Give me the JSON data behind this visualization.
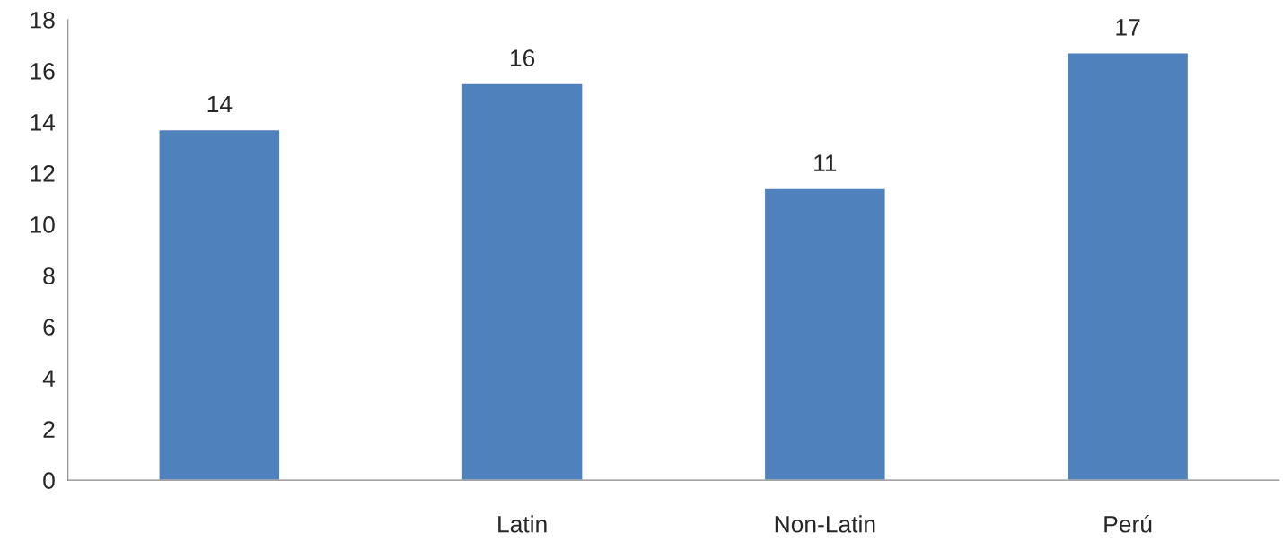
{
  "chart_data": {
    "type": "bar",
    "categories": [
      null,
      "Latin",
      "Non-Latin",
      "Perú"
    ],
    "values": [
      13.7,
      15.5,
      11.4,
      16.7
    ],
    "value_labels": [
      "14",
      "16",
      "11",
      "17"
    ],
    "color": "#4f81bd",
    "ylim": [
      0,
      18
    ],
    "yticks": [
      0,
      2,
      4,
      6,
      8,
      10,
      12,
      14,
      16,
      18
    ],
    "grid": false,
    "legend": false
  }
}
